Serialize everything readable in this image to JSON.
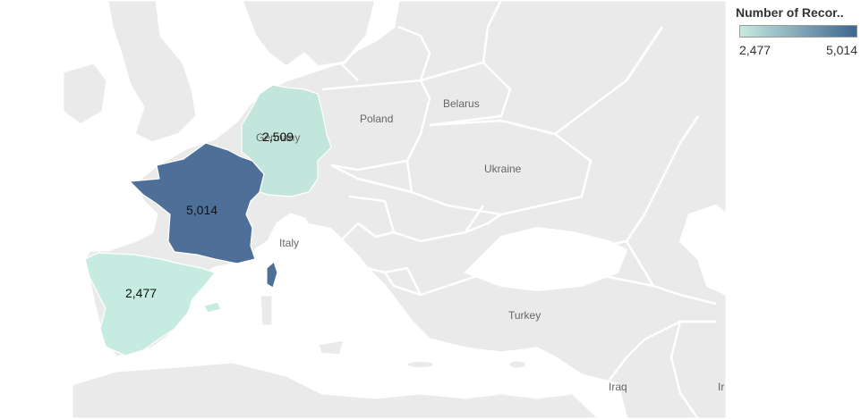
{
  "legend": {
    "title": "Number of Recor..",
    "min_label": "2,477",
    "max_label": "5,014",
    "color_low": "#c6ebe0",
    "color_high": "#3e6590"
  },
  "map_labels": {
    "poland": "Poland",
    "belarus": "Belarus",
    "ukraine": "Ukraine",
    "turkey": "Turkey",
    "italy": "Italy",
    "iraq": "Iraq",
    "germany": "Germany",
    "iran_partial": "Ir"
  },
  "colors": {
    "land": "#eaeaea",
    "sea": "#ffffff",
    "france": "#4e6f97",
    "germany": "#c2e6dc",
    "spain": "#c6ebe0"
  },
  "chart_data": {
    "type": "map",
    "measure": "Number of Records",
    "regions": [
      {
        "name": "France",
        "label": "5,014",
        "value": 5014
      },
      {
        "name": "Germany",
        "label": "2,509",
        "value": 2509
      },
      {
        "name": "Spain",
        "label": "2,477",
        "value": 2477
      }
    ],
    "color_range": [
      2477,
      5014
    ]
  }
}
